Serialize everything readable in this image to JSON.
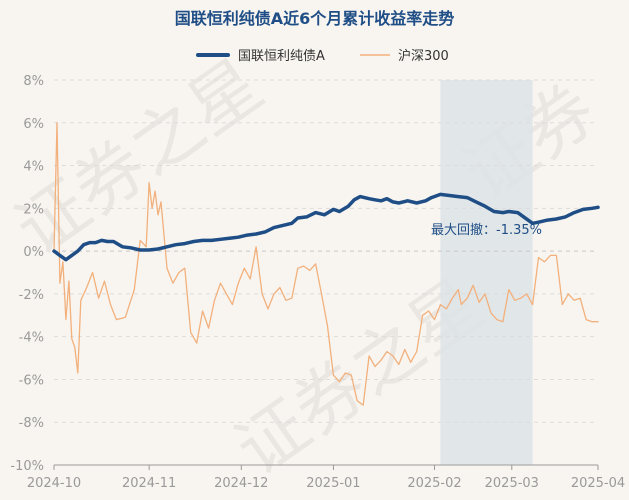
{
  "chart_data": {
    "type": "line",
    "title": "国联恒利纯债A近6个月累计收益率走势",
    "legend": [
      "国联恒利纯债A",
      "沪深300"
    ],
    "legend_placement": "top-center",
    "y_ticks": [
      "8%",
      "6%",
      "4%",
      "2%",
      "0%",
      "-2%",
      "-4%",
      "-6%",
      "-8%",
      "-10%"
    ],
    "ylim": [
      -10,
      8
    ],
    "grid": "horizontal-dashed",
    "x_ticks": [
      {
        "label": "2024-10",
        "date": "2024-09-30"
      },
      {
        "label": "2024-11",
        "date": "2024-11-01"
      },
      {
        "label": "2024-12",
        "date": "2024-12-02"
      },
      {
        "label": "2025-01",
        "date": "2025-01-02"
      },
      {
        "label": "2025-02",
        "date": "2025-02-05"
      },
      {
        "label": "2025-03",
        "date": "2025-03-03"
      },
      {
        "label": "2025-04",
        "date": "2025-04-01"
      }
    ],
    "xlim": [
      "2024-09-30",
      "2025-04-01"
    ],
    "colors": {
      "fund": "#1f4e86",
      "index": "#f2b07c",
      "shade": "#dde3e6"
    },
    "drawdown": {
      "label": "最大回撤：-1.35%",
      "start": "2025-02-07",
      "end": "2025-03-10"
    },
    "series": [
      {
        "name": "国联恒利纯债A",
        "points": [
          [
            "2024-09-30",
            0.0
          ],
          [
            "2024-10-02",
            -0.2
          ],
          [
            "2024-10-04",
            -0.4
          ],
          [
            "2024-10-06",
            -0.2
          ],
          [
            "2024-10-08",
            0.0
          ],
          [
            "2024-10-10",
            0.3
          ],
          [
            "2024-10-12",
            0.4
          ],
          [
            "2024-10-14",
            0.4
          ],
          [
            "2024-10-16",
            0.5
          ],
          [
            "2024-10-18",
            0.45
          ],
          [
            "2024-10-20",
            0.45
          ],
          [
            "2024-10-23",
            0.2
          ],
          [
            "2024-10-26",
            0.15
          ],
          [
            "2024-10-29",
            0.05
          ],
          [
            "2024-11-01",
            0.05
          ],
          [
            "2024-11-04",
            0.1
          ],
          [
            "2024-11-07",
            0.2
          ],
          [
            "2024-11-10",
            0.3
          ],
          [
            "2024-11-13",
            0.35
          ],
          [
            "2024-11-16",
            0.45
          ],
          [
            "2024-11-19",
            0.5
          ],
          [
            "2024-11-22",
            0.5
          ],
          [
            "2024-11-25",
            0.55
          ],
          [
            "2024-11-28",
            0.6
          ],
          [
            "2024-12-01",
            0.65
          ],
          [
            "2024-12-04",
            0.75
          ],
          [
            "2024-12-07",
            0.8
          ],
          [
            "2024-12-10",
            0.9
          ],
          [
            "2024-12-13",
            1.1
          ],
          [
            "2024-12-16",
            1.2
          ],
          [
            "2024-12-19",
            1.3
          ],
          [
            "2024-12-21",
            1.55
          ],
          [
            "2024-12-24",
            1.6
          ],
          [
            "2024-12-27",
            1.8
          ],
          [
            "2024-12-30",
            1.7
          ],
          [
            "2025-01-02",
            1.95
          ],
          [
            "2025-01-04",
            1.85
          ],
          [
            "2025-01-07",
            2.1
          ],
          [
            "2025-01-09",
            2.4
          ],
          [
            "2025-01-11",
            2.55
          ],
          [
            "2025-01-14",
            2.45
          ],
          [
            "2025-01-16",
            2.4
          ],
          [
            "2025-01-18",
            2.35
          ],
          [
            "2025-01-20",
            2.45
          ],
          [
            "2025-01-22",
            2.3
          ],
          [
            "2025-01-24",
            2.25
          ],
          [
            "2025-01-27",
            2.35
          ],
          [
            "2025-01-30",
            2.25
          ],
          [
            "2025-02-02",
            2.35
          ],
          [
            "2025-02-04",
            2.5
          ],
          [
            "2025-02-07",
            2.65
          ],
          [
            "2025-02-10",
            2.6
          ],
          [
            "2025-02-13",
            2.55
          ],
          [
            "2025-02-16",
            2.5
          ],
          [
            "2025-02-19",
            2.3
          ],
          [
            "2025-02-22",
            2.1
          ],
          [
            "2025-02-25",
            1.85
          ],
          [
            "2025-02-28",
            1.8
          ],
          [
            "2025-03-02",
            1.85
          ],
          [
            "2025-03-05",
            1.8
          ],
          [
            "2025-03-07",
            1.6
          ],
          [
            "2025-03-10",
            1.3
          ],
          [
            "2025-03-12",
            1.35
          ],
          [
            "2025-03-15",
            1.45
          ],
          [
            "2025-03-18",
            1.5
          ],
          [
            "2025-03-21",
            1.6
          ],
          [
            "2025-03-24",
            1.8
          ],
          [
            "2025-03-27",
            1.95
          ],
          [
            "2025-03-30",
            2.0
          ],
          [
            "2025-04-01",
            2.05
          ]
        ]
      },
      {
        "name": "沪深300",
        "points": [
          [
            "2024-09-30",
            0.0
          ],
          [
            "2024-10-01",
            6.0
          ],
          [
            "2024-10-02",
            -1.5
          ],
          [
            "2024-10-03",
            -0.5
          ],
          [
            "2024-10-04",
            -3.2
          ],
          [
            "2024-10-05",
            -1.4
          ],
          [
            "2024-10-06",
            -4.1
          ],
          [
            "2024-10-07",
            -4.5
          ],
          [
            "2024-10-08",
            -5.7
          ],
          [
            "2024-10-09",
            -2.3
          ],
          [
            "2024-10-11",
            -1.7
          ],
          [
            "2024-10-13",
            -1.0
          ],
          [
            "2024-10-15",
            -2.2
          ],
          [
            "2024-10-17",
            -1.4
          ],
          [
            "2024-10-19",
            -2.5
          ],
          [
            "2024-10-21",
            -3.2
          ],
          [
            "2024-10-24",
            -3.1
          ],
          [
            "2024-10-27",
            -1.8
          ],
          [
            "2024-10-29",
            0.5
          ],
          [
            "2024-10-31",
            0.2
          ],
          [
            "2024-11-01",
            3.2
          ],
          [
            "2024-11-02",
            2.0
          ],
          [
            "2024-11-03",
            2.8
          ],
          [
            "2024-11-04",
            1.7
          ],
          [
            "2024-11-05",
            2.3
          ],
          [
            "2024-11-07",
            -0.8
          ],
          [
            "2024-11-09",
            -1.5
          ],
          [
            "2024-11-11",
            -1.0
          ],
          [
            "2024-11-13",
            -0.8
          ],
          [
            "2024-11-15",
            -3.8
          ],
          [
            "2024-11-17",
            -4.3
          ],
          [
            "2024-11-19",
            -2.8
          ],
          [
            "2024-11-21",
            -3.6
          ],
          [
            "2024-11-23",
            -2.3
          ],
          [
            "2024-11-25",
            -1.5
          ],
          [
            "2024-11-27",
            -2.0
          ],
          [
            "2024-11-29",
            -2.5
          ],
          [
            "2024-12-01",
            -1.5
          ],
          [
            "2024-12-03",
            -0.8
          ],
          [
            "2024-12-05",
            -1.3
          ],
          [
            "2024-12-07",
            0.2
          ],
          [
            "2024-12-09",
            -2.0
          ],
          [
            "2024-12-11",
            -2.7
          ],
          [
            "2024-12-13",
            -2.0
          ],
          [
            "2024-12-15",
            -1.7
          ],
          [
            "2024-12-17",
            -2.3
          ],
          [
            "2024-12-19",
            -2.2
          ],
          [
            "2024-12-21",
            -0.8
          ],
          [
            "2024-12-23",
            -0.7
          ],
          [
            "2024-12-25",
            -0.9
          ],
          [
            "2024-12-27",
            -0.6
          ],
          [
            "2024-12-29",
            -2.0
          ],
          [
            "2024-12-31",
            -3.5
          ],
          [
            "2025-01-02",
            -5.8
          ],
          [
            "2025-01-04",
            -6.1
          ],
          [
            "2025-01-06",
            -5.7
          ],
          [
            "2025-01-08",
            -5.8
          ],
          [
            "2025-01-10",
            -7.0
          ],
          [
            "2025-01-12",
            -7.2
          ],
          [
            "2025-01-14",
            -4.9
          ],
          [
            "2025-01-16",
            -5.4
          ],
          [
            "2025-01-18",
            -5.1
          ],
          [
            "2025-01-20",
            -4.7
          ],
          [
            "2025-01-22",
            -4.9
          ],
          [
            "2025-01-24",
            -5.3
          ],
          [
            "2025-01-26",
            -4.6
          ],
          [
            "2025-01-28",
            -5.2
          ],
          [
            "2025-01-30",
            -4.7
          ],
          [
            "2025-02-01",
            -3.0
          ],
          [
            "2025-02-03",
            -2.8
          ],
          [
            "2025-02-05",
            -3.2
          ],
          [
            "2025-02-07",
            -2.5
          ],
          [
            "2025-02-09",
            -2.7
          ],
          [
            "2025-02-11",
            -2.2
          ],
          [
            "2025-02-13",
            -1.8
          ],
          [
            "2025-02-14",
            -2.5
          ],
          [
            "2025-02-16",
            -2.2
          ],
          [
            "2025-02-18",
            -1.6
          ],
          [
            "2025-02-20",
            -2.4
          ],
          [
            "2025-02-22",
            -2.0
          ],
          [
            "2025-02-24",
            -2.9
          ],
          [
            "2025-02-26",
            -3.2
          ],
          [
            "2025-02-28",
            -3.3
          ],
          [
            "2025-03-02",
            -1.8
          ],
          [
            "2025-03-04",
            -2.3
          ],
          [
            "2025-03-06",
            -2.2
          ],
          [
            "2025-03-08",
            -2.0
          ],
          [
            "2025-03-10",
            -2.5
          ],
          [
            "2025-03-12",
            -0.3
          ],
          [
            "2025-03-14",
            -0.5
          ],
          [
            "2025-03-16",
            -0.2
          ],
          [
            "2025-03-18",
            -0.2
          ],
          [
            "2025-03-20",
            -2.5
          ],
          [
            "2025-03-22",
            -2.0
          ],
          [
            "2025-03-24",
            -2.3
          ],
          [
            "2025-03-26",
            -2.2
          ],
          [
            "2025-03-28",
            -3.2
          ],
          [
            "2025-03-30",
            -3.3
          ],
          [
            "2025-04-01",
            -3.3
          ]
        ]
      }
    ]
  }
}
